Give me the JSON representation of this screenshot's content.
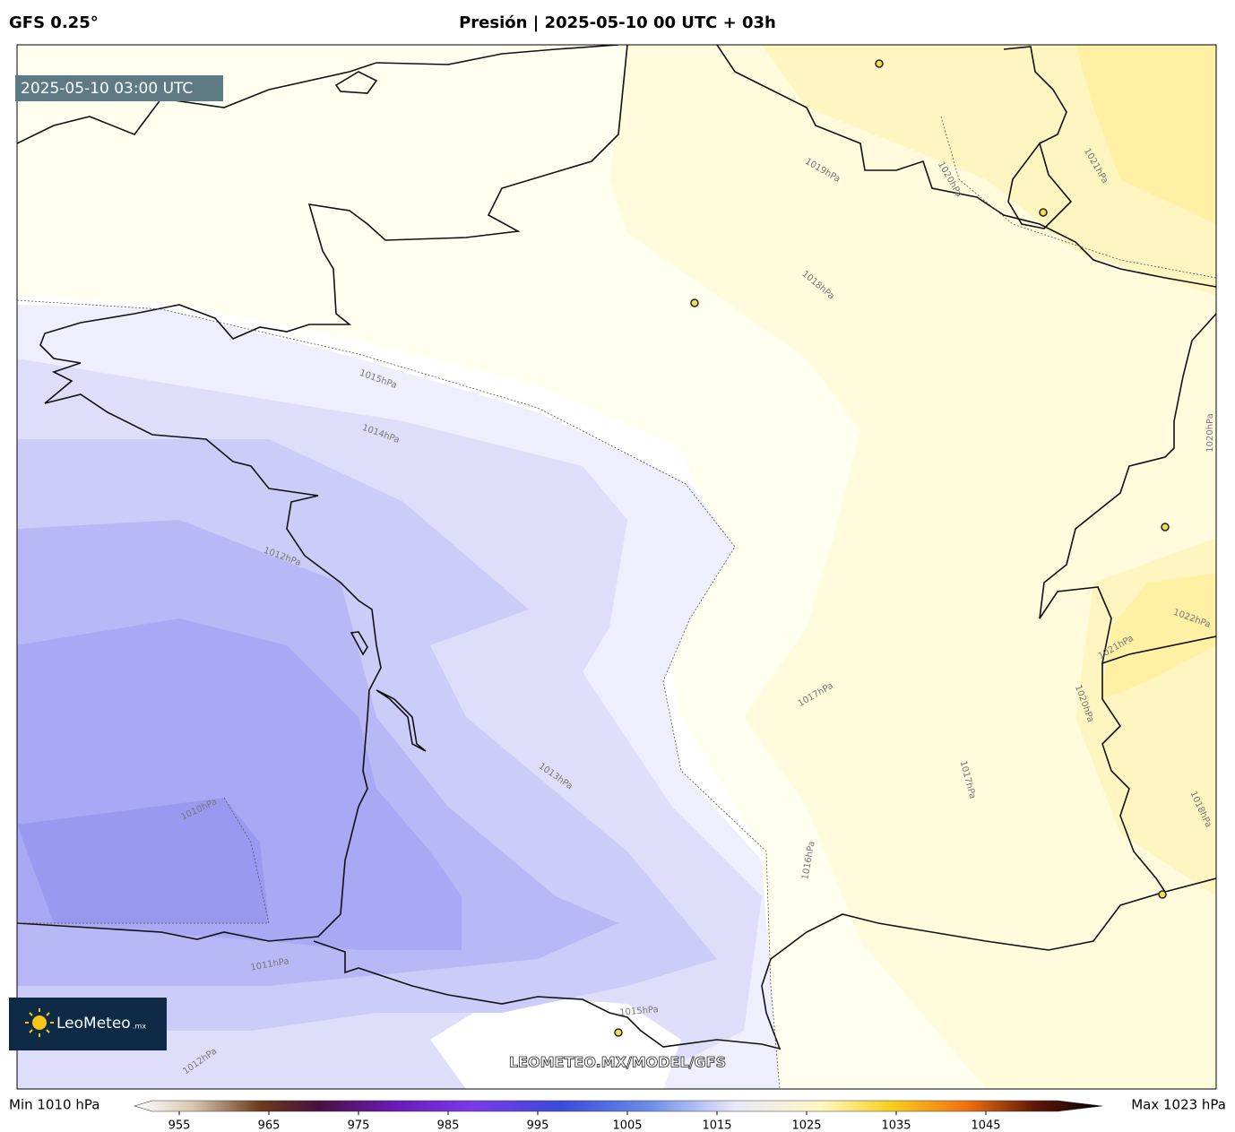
{
  "header": {
    "model": "GFS 0.25°",
    "title": "Presión | 2025-05-10 00 UTC + 03h"
  },
  "map": {
    "timestamp": "2025-05-10 03:00 UTC",
    "contour_labels": [
      "1019hPa",
      "1020hPa",
      "1021hPa",
      "1018hPa",
      "1015hPa",
      "1014hPa",
      "1020hPa",
      "1012hPa",
      "1022hPa",
      "1021hPa",
      "1020hPa",
      "1017hPa",
      "1013hPa",
      "1017hPa",
      "1018hPa",
      "1016hPa",
      "1010hPa",
      "1011hPa",
      "1015hPa",
      "1012hPa"
    ],
    "watermark": "LEOMETEO.MX/MODEL/GFS",
    "logo": {
      "name": "LeoMeteo",
      "suffix": ".mx"
    }
  },
  "colorbar": {
    "min_label": "Min 1010 hPa",
    "max_label": "Max 1023 hPa",
    "lim": [
      950,
      1058
    ],
    "ticks": [
      955,
      965,
      975,
      985,
      995,
      1005,
      1015,
      1025,
      1035,
      1045
    ]
  }
}
